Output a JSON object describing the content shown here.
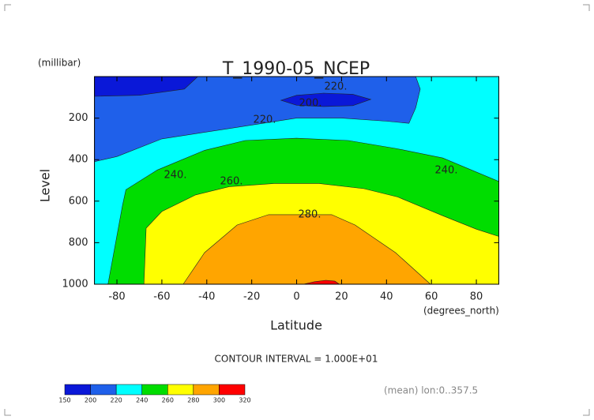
{
  "chart_data": {
    "type": "contour",
    "title": "T_1990-05_NCEP",
    "y_unit": "(millibar)",
    "ylabel": "Level",
    "xlabel": "Latitude",
    "x_unit": "(degrees_north)",
    "note": "CONTOUR INTERVAL = 1.000E+01",
    "footnote": "(mean) lon:0..357.5",
    "xlim": [
      -90,
      90
    ],
    "ylim": [
      1000,
      0
    ],
    "xticks": [
      -80,
      -60,
      -40,
      -20,
      0,
      20,
      40,
      60,
      80
    ],
    "yticks": [
      200,
      400,
      600,
      800,
      1000
    ],
    "colorbar": {
      "levels": [
        150,
        200,
        220,
        240,
        260,
        280,
        300,
        320
      ],
      "colors": [
        "#0a18d8",
        "#1f60ea",
        "#00ffff",
        "#00dd00",
        "#ffff00",
        "#ffa500",
        "#ff0000"
      ]
    },
    "regions": [
      {
        "above": 200,
        "lat": [
          -90,
          90,
          90,
          -90
        ],
        "p": [
          0,
          0,
          1000,
          1000
        ]
      },
      {
        "above": 220,
        "lat": [
          -90,
          -80,
          -60,
          -30,
          0,
          20,
          40,
          50,
          53,
          55,
          53,
          90,
          90,
          -90
        ],
        "p": [
          410,
          385,
          300,
          250,
          200,
          200,
          215,
          225,
          150,
          60,
          0,
          0,
          1000,
          1000
        ]
      },
      {
        "above": 240,
        "lat": [
          -84,
          -77.5,
          -76,
          -62,
          -41,
          -23,
          0,
          23,
          44,
          65,
          90,
          90
        ],
        "p": [
          1000,
          620,
          545,
          450,
          355,
          308,
          297,
          308,
          346,
          392,
          505,
          1000
        ]
      },
      {
        "above": 260,
        "lat": [
          -68,
          -67,
          -60,
          -45,
          -30,
          -10,
          10,
          30,
          45,
          65,
          80,
          90,
          90
        ],
        "p": [
          1000,
          730,
          650,
          570,
          530,
          515,
          515,
          540,
          580,
          670,
          735,
          770,
          1000
        ]
      },
      {
        "above": 280,
        "lat": [
          -50.5,
          -41,
          -26.5,
          -12.5,
          15.6,
          26,
          44,
          59.6
        ],
        "p": [
          1000,
          848,
          715,
          665,
          665,
          715,
          848,
          1000
        ]
      },
      {
        "above": 300,
        "lat": [
          3,
          8,
          13,
          17,
          19
        ],
        "p": [
          1000,
          988,
          981,
          985,
          1000
        ]
      },
      {
        "below": 200,
        "lat": [
          -90,
          -90,
          -70,
          -50,
          -44
        ],
        "p": [
          0,
          95,
          90,
          60,
          0
        ]
      },
      {
        "below": 200,
        "lat": [
          -7,
          0,
          12,
          25,
          33,
          25,
          12,
          0
        ],
        "p": [
          114,
          90,
          80,
          85,
          110,
          140,
          144,
          138
        ]
      }
    ],
    "contour_labels": [
      {
        "value": 220,
        "label": "220."
      },
      {
        "value": 200,
        "label": "200."
      },
      {
        "value": 220,
        "label": "220."
      },
      {
        "value": 240,
        "label": "240."
      },
      {
        "value": 260,
        "label": "260."
      },
      {
        "value": 280,
        "label": "280."
      },
      {
        "value": 240,
        "label": "240."
      }
    ]
  }
}
